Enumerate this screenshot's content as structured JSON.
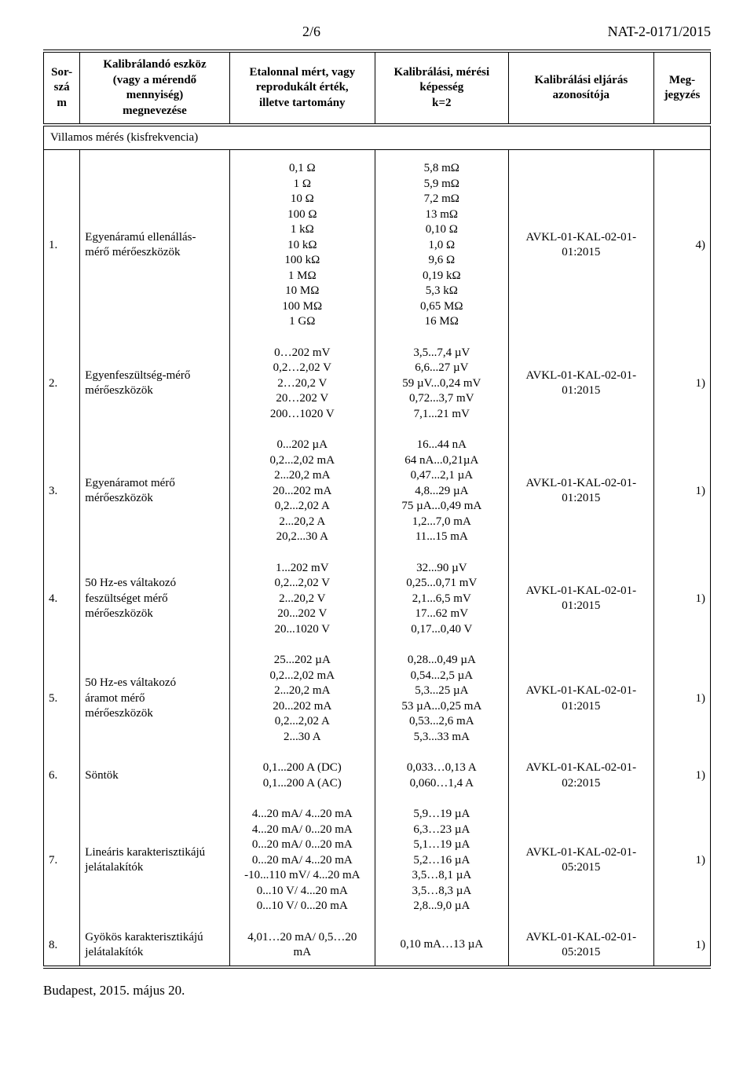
{
  "header": {
    "page_number": "2/6",
    "doc_ref": "NAT-2-0171/2015"
  },
  "columns": [
    "Sor-\nszá\nm",
    "Kalibrálandó eszköz\n(vagy a mérendő\nmennyiség)\nmegnevezése",
    "Etalonnal mért, vagy\nreprodukált érték,\nilletve tartomány",
    "Kalibrálási, mérési\nképesség\nk=2",
    "Kalibrálási eljárás\nazonosítója",
    "Meg-\njegyzés"
  ],
  "section_title": "Villamos mérés (kisfrekvencia)",
  "rows": [
    {
      "num": "1.",
      "device": "Egyenáramú ellenállás-\nmérő mérőeszközök",
      "range": "0,1 Ω\n1 Ω\n10 Ω\n100 Ω\n1 kΩ\n10 kΩ\n100 kΩ\n1 MΩ\n10 MΩ\n100 MΩ\n1 GΩ",
      "cap": "5,8 mΩ\n5,9 mΩ\n7,2 mΩ\n13 mΩ\n0,10 Ω\n1,0 Ω\n9,6 Ω\n0,19 kΩ\n5,3 kΩ\n0,65 MΩ\n16 MΩ",
      "proc": "AVKL-01-KAL-02-01-\n01:2015",
      "note": "4)"
    },
    {
      "num": "2.",
      "device": "Egyenfeszültség-mérő\nmérőeszközök",
      "range": "0…202 mV\n0,2…2,02 V\n2…20,2 V\n20…202 V\n200…1020 V",
      "cap": "3,5...7,4 µV\n6,6...27 µV\n59 µV...0,24 mV\n0,72...3,7 mV\n7,1...21 mV",
      "proc": "AVKL-01-KAL-02-01-\n01:2015",
      "note": "1)"
    },
    {
      "num": "3.",
      "device": "Egyenáramot mérő\nmérőeszközök",
      "range": "0...202 µA\n0,2...2,02 mA\n2...20,2 mA\n20...202 mA\n0,2...2,02 A\n2...20,2 A\n20,2...30 A",
      "cap": "16...44 nA\n64 nA...0,21µA\n0,47...2,1 µA\n4,8...29 µA\n75 µA...0,49 mA\n1,2...7,0 mA\n11...15 mA",
      "proc": "AVKL-01-KAL-02-01-\n01:2015",
      "note": "1)"
    },
    {
      "num": "4.",
      "device": "50 Hz-es váltakozó\nfeszültséget mérő\nmérőeszközök",
      "range": "1...202 mV\n0,2...2,02 V\n2...20,2 V\n20...202 V\n20...1020 V",
      "cap": "32...90 µV\n0,25...0,71 mV\n2,1...6,5 mV\n17...62 mV\n0,17...0,40 V",
      "proc": "AVKL-01-KAL-02-01-\n01:2015",
      "note": "1)"
    },
    {
      "num": "5.",
      "device": "50 Hz-es váltakozó\náramot mérő\nmérőeszközök",
      "range": "25...202 µA\n0,2...2,02 mA\n2...20,2 mA\n20...202 mA\n0,2...2,02 A\n2...30 A",
      "cap": "0,28...0,49 µA\n0,54...2,5 µA\n5,3...25 µA\n53 µA...0,25 mA\n0,53...2,6 mA\n5,3...33 mA",
      "proc": "AVKL-01-KAL-02-01-\n01:2015",
      "note": "1)"
    },
    {
      "num": "6.",
      "device": "Söntök",
      "range": "0,1...200 A (DC)\n0,1...200 A (AC)",
      "cap": "0,033…0,13 A\n0,060…1,4 A",
      "proc": "AVKL-01-KAL-02-01-\n02:2015",
      "note": "1)"
    },
    {
      "num": "7.",
      "device": "Lineáris karakterisztikájú\njelátalakítók",
      "range": "4...20 mA/ 4...20 mA\n4...20 mA/ 0...20 mA\n0...20 mA/ 0...20 mA\n0...20 mA/ 4...20 mA\n-10...110 mV/ 4...20 mA\n0...10 V/ 4...20 mA\n0...10 V/ 0...20 mA",
      "cap": "5,9…19 µA\n6,3…23 µA\n5,1…19 µA\n5,2…16 µA\n3,5…8,1 µA\n3,5…8,3 µA\n2,8...9,0 µA",
      "proc": "AVKL-01-KAL-02-01-\n05:2015",
      "note": "1)"
    },
    {
      "num": "8.",
      "device": "Gyökös karakterisztikájú\njelátalakítók",
      "range": "4,01…20 mA/ 0,5…20\nmA",
      "cap": "0,10 mA…13 µA",
      "proc": "AVKL-01-KAL-02-01-\n05:2015",
      "note": "1)"
    }
  ],
  "footer": "Budapest, 2015. május 20."
}
